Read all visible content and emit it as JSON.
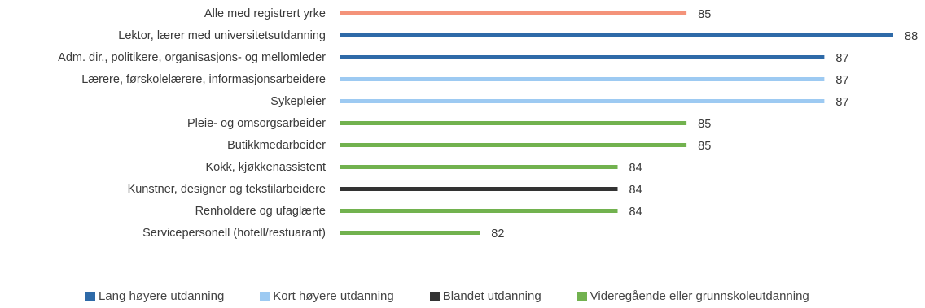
{
  "chart_data": {
    "type": "bar",
    "orientation": "horizontal",
    "categories": [
      "Alle med registrert yrke",
      "Lektor, lærer med universitetsutdanning",
      "Adm. dir., politikere, organisasjons- og mellomleder",
      "Lærere, førskolelærere, informasjonsarbeidere",
      "Sykepleier",
      "Pleie- og omsorgsarbeider",
      "Butikkmedarbeider",
      "Kokk, kjøkkenassistent",
      "Kunstner, designer og tekstilarbeidere",
      "Renholdere og ufaglærte",
      "Servicepersonell (hotell/restuarant)"
    ],
    "values": [
      85,
      88,
      87,
      87,
      87,
      85,
      85,
      84,
      84,
      84,
      82
    ],
    "groups": [
      "total",
      "lang",
      "lang",
      "kort",
      "kort",
      "vgs",
      "vgs",
      "vgs",
      "blandet",
      "vgs",
      "vgs"
    ],
    "legend": [
      {
        "key": "lang",
        "label": "Lang høyere utdanning",
        "color": "#2e6aa8"
      },
      {
        "key": "kort",
        "label": "Kort høyere utdanning",
        "color": "#9dcaf2"
      },
      {
        "key": "blandet",
        "label": "Blandet utdanning",
        "color": "#333333"
      },
      {
        "key": "vgs",
        "label": "Videregående eller grunnskoleutdanning",
        "color": "#72b24f"
      }
    ],
    "total_color": "#f4937a",
    "legend_position": "bottom",
    "grid": false
  }
}
